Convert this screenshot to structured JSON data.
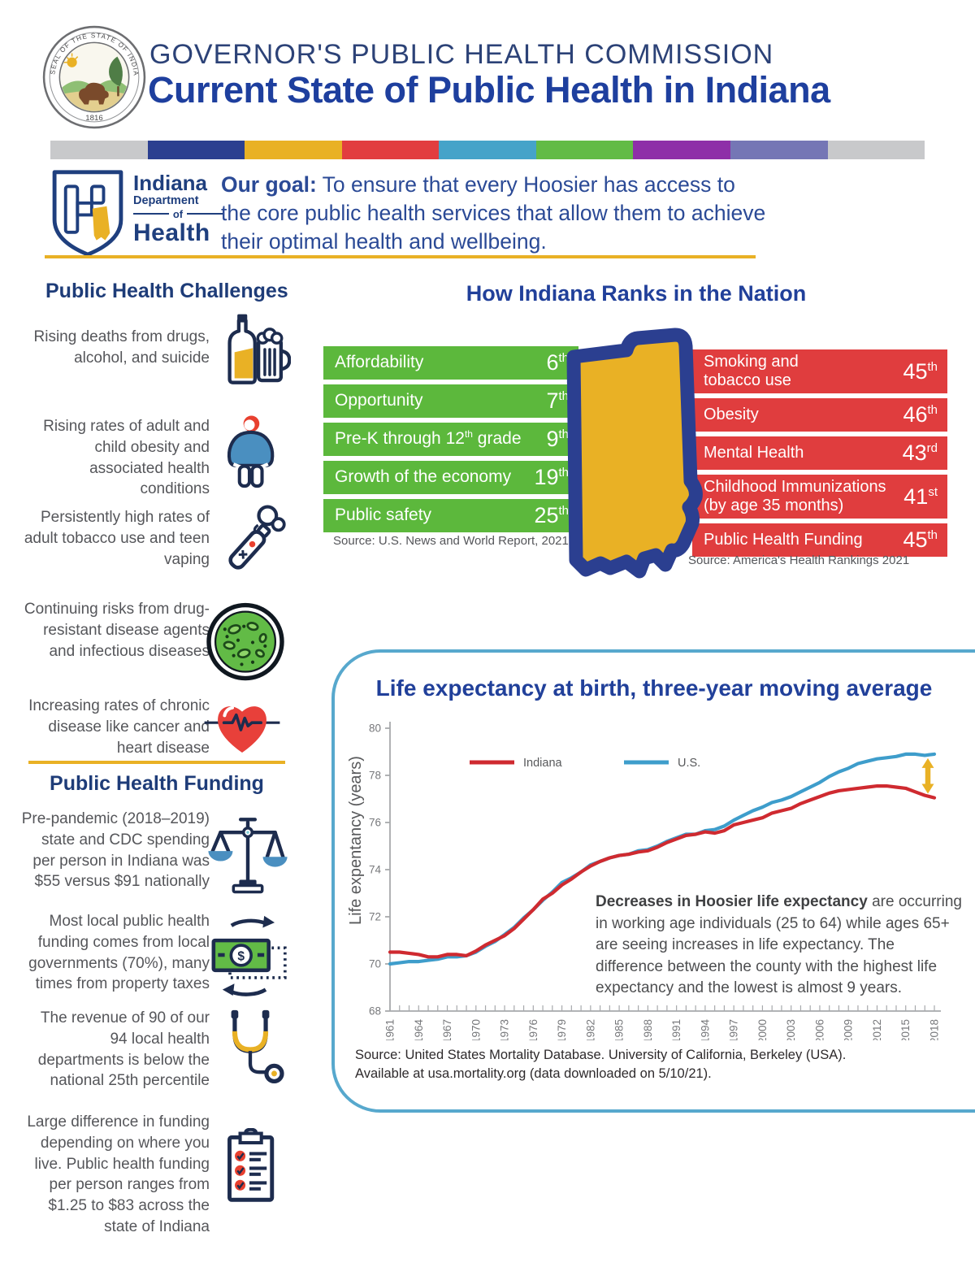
{
  "header": {
    "eyebrow": "GOVERNOR'S PUBLIC HEALTH COMMISSION",
    "title": "Current State of Public Health in Indiana",
    "seal_text": "SEAL OF THE STATE OF INDIANA",
    "seal_year": "1816"
  },
  "color_strip": [
    "#c8c9cb",
    "#2b3f90",
    "#e9b125",
    "#e23d3f",
    "#45a3c9",
    "#62bb46",
    "#8e2fa8",
    "#7576b5",
    "#c8c9cb"
  ],
  "idoh": {
    "l1": "Indiana",
    "l2": "Department",
    "l3": "of",
    "l4": "Health"
  },
  "icons": {
    "dollar_glyph": "$"
  },
  "goal": {
    "lead": "Our goal:",
    "text": " To ensure that every Hoosier has access to the core public health services that allow them to achieve their optimal health and wellbeing."
  },
  "challenges": {
    "heading": "Public Health Challenges",
    "items": [
      {
        "text": "Rising deaths from drugs, alcohol, and suicide",
        "icon": "alcohol-bottle-mug-icon"
      },
      {
        "text": "Rising rates of adult and child obesity and associated health conditions",
        "icon": "obesity-person-icon"
      },
      {
        "text": "Persistently high rates of adult tobacco use and teen vaping",
        "icon": "vape-icon"
      },
      {
        "text": "Continuing risks from drug-resistant disease agents and infectious diseases",
        "icon": "petri-dish-icon"
      },
      {
        "text": "Increasing rates of chronic disease like cancer and heart disease",
        "icon": "heart-pulse-icon"
      }
    ]
  },
  "funding": {
    "heading": "Public Health Funding",
    "items": [
      {
        "text": "Pre-pandemic (2018–2019) state and CDC spending per person in Indiana was $55 versus $91 nationally",
        "icon": "balance-scale-icon"
      },
      {
        "text": "Most local public health funding comes from local governments (70%), many times from property taxes",
        "icon": "money-cycle-icon"
      },
      {
        "text": "The revenue of 90 of our 94 local health departments is below the national 25th percentile",
        "icon": "stethoscope-icon"
      },
      {
        "text": "Large difference in funding depending on where you live. Public health funding per person ranges from $1.25 to $83 across the state of Indiana",
        "icon": "clipboard-checklist-icon"
      }
    ]
  },
  "rankings": {
    "heading": "How Indiana Ranks in the Nation",
    "good": [
      {
        "label": "Affordability",
        "rank": "6",
        "ord": "th"
      },
      {
        "label": "Opportunity",
        "rank": "7",
        "ord": "th"
      },
      {
        "label": [
          "Pre-K through 12",
          {
            "sup": "th"
          },
          " grade"
        ],
        "rank": "9",
        "ord": "th"
      },
      {
        "label": "Growth of the economy",
        "rank": "19",
        "ord": "th"
      },
      {
        "label": "Public safety",
        "rank": "25",
        "ord": "th"
      }
    ],
    "good_source": "Source: U.S. News and World Report, 2021",
    "bad": [
      {
        "label": "Smoking and\ntobacco use",
        "rank": "45",
        "ord": "th"
      },
      {
        "label": "Obesity",
        "rank": "46",
        "ord": "th"
      },
      {
        "label": "Mental Health",
        "rank": "43",
        "ord": "rd"
      },
      {
        "label": "Childhood Immunizations\n(by age 35 months)",
        "rank": "41",
        "ord": "st"
      },
      {
        "label": "Public Health Funding",
        "rank": "45",
        "ord": "th"
      }
    ],
    "bad_source": "Source: America's Health Rankings 2021"
  },
  "chart": {
    "title": "Life expectancy at birth, three-year moving average",
    "annotation_bold": "Decreases in Hoosier life expectancy",
    "annotation_rest": " are occurring in working age individuals (25 to 64) while ages 65+ are seeing increases in life expectancy. The difference between the county with the highest life expectancy and the lowest is almost 9 years.",
    "source_line1": "Source: United States Mortality Database. University of California, Berkeley (USA).",
    "source_line2": "Available at usa.mortality.org (data downloaded on 5/10/21)."
  },
  "chart_data": {
    "type": "line",
    "title": "Life expectancy at birth, three-year moving average",
    "ylabel": "Life expentancy (years)",
    "xlabel": "",
    "ylim": [
      68,
      80
    ],
    "xlim": [
      1961,
      2018
    ],
    "yticks": [
      68,
      70,
      72,
      74,
      76,
      78,
      80
    ],
    "xticks": [
      1961,
      1964,
      1967,
      1970,
      1973,
      1976,
      1979,
      1982,
      1985,
      1988,
      1991,
      1994,
      1997,
      2000,
      2003,
      2006,
      2009,
      2012,
      2015,
      2018
    ],
    "grid": false,
    "legend_position": "top-left-inside",
    "series": [
      {
        "name": "Indiana",
        "color": "#cf2a30",
        "points": [
          [
            1961,
            70.5
          ],
          [
            1962,
            70.5
          ],
          [
            1963,
            70.45
          ],
          [
            1964,
            70.4
          ],
          [
            1965,
            70.3
          ],
          [
            1966,
            70.3
          ],
          [
            1967,
            70.4
          ],
          [
            1968,
            70.4
          ],
          [
            1969,
            70.35
          ],
          [
            1970,
            70.55
          ],
          [
            1971,
            70.8
          ],
          [
            1972,
            71.0
          ],
          [
            1973,
            71.2
          ],
          [
            1974,
            71.5
          ],
          [
            1975,
            71.9
          ],
          [
            1976,
            72.3
          ],
          [
            1977,
            72.75
          ],
          [
            1978,
            73.0
          ],
          [
            1979,
            73.35
          ],
          [
            1980,
            73.6
          ],
          [
            1981,
            73.9
          ],
          [
            1982,
            74.15
          ],
          [
            1983,
            74.35
          ],
          [
            1984,
            74.5
          ],
          [
            1985,
            74.6
          ],
          [
            1986,
            74.65
          ],
          [
            1987,
            74.75
          ],
          [
            1988,
            74.8
          ],
          [
            1989,
            74.95
          ],
          [
            1990,
            75.15
          ],
          [
            1991,
            75.3
          ],
          [
            1992,
            75.45
          ],
          [
            1993,
            75.5
          ],
          [
            1994,
            75.6
          ],
          [
            1995,
            75.55
          ],
          [
            1996,
            75.65
          ],
          [
            1997,
            75.9
          ],
          [
            1998,
            76.0
          ],
          [
            1999,
            76.1
          ],
          [
            2000,
            76.2
          ],
          [
            2001,
            76.4
          ],
          [
            2002,
            76.5
          ],
          [
            2003,
            76.6
          ],
          [
            2004,
            76.8
          ],
          [
            2005,
            76.95
          ],
          [
            2006,
            77.1
          ],
          [
            2007,
            77.25
          ],
          [
            2008,
            77.35
          ],
          [
            2009,
            77.4
          ],
          [
            2010,
            77.45
          ],
          [
            2011,
            77.5
          ],
          [
            2012,
            77.55
          ],
          [
            2013,
            77.55
          ],
          [
            2014,
            77.5
          ],
          [
            2015,
            77.45
          ],
          [
            2016,
            77.3
          ],
          [
            2017,
            77.15
          ],
          [
            2018,
            77.05
          ]
        ]
      },
      {
        "name": "U.S.",
        "color": "#3e9dcb",
        "points": [
          [
            1961,
            70.0
          ],
          [
            1962,
            70.05
          ],
          [
            1963,
            70.1
          ],
          [
            1964,
            70.1
          ],
          [
            1965,
            70.15
          ],
          [
            1966,
            70.2
          ],
          [
            1967,
            70.3
          ],
          [
            1968,
            70.3
          ],
          [
            1969,
            70.35
          ],
          [
            1970,
            70.5
          ],
          [
            1971,
            70.75
          ],
          [
            1972,
            70.95
          ],
          [
            1973,
            71.25
          ],
          [
            1974,
            71.55
          ],
          [
            1975,
            71.95
          ],
          [
            1976,
            72.3
          ],
          [
            1977,
            72.7
          ],
          [
            1978,
            73.05
          ],
          [
            1979,
            73.45
          ],
          [
            1980,
            73.65
          ],
          [
            1981,
            73.9
          ],
          [
            1982,
            74.2
          ],
          [
            1983,
            74.35
          ],
          [
            1984,
            74.5
          ],
          [
            1985,
            74.6
          ],
          [
            1986,
            74.65
          ],
          [
            1987,
            74.8
          ],
          [
            1988,
            74.85
          ],
          [
            1989,
            75.0
          ],
          [
            1990,
            75.2
          ],
          [
            1991,
            75.35
          ],
          [
            1992,
            75.5
          ],
          [
            1993,
            75.5
          ],
          [
            1994,
            75.65
          ],
          [
            1995,
            75.7
          ],
          [
            1996,
            75.85
          ],
          [
            1997,
            76.1
          ],
          [
            1998,
            76.3
          ],
          [
            1999,
            76.5
          ],
          [
            2000,
            76.65
          ],
          [
            2001,
            76.85
          ],
          [
            2002,
            76.95
          ],
          [
            2003,
            77.1
          ],
          [
            2004,
            77.3
          ],
          [
            2005,
            77.5
          ],
          [
            2006,
            77.7
          ],
          [
            2007,
            77.95
          ],
          [
            2008,
            78.15
          ],
          [
            2009,
            78.3
          ],
          [
            2010,
            78.5
          ],
          [
            2011,
            78.6
          ],
          [
            2012,
            78.7
          ],
          [
            2013,
            78.75
          ],
          [
            2014,
            78.8
          ],
          [
            2015,
            78.9
          ],
          [
            2016,
            78.9
          ],
          [
            2017,
            78.85
          ],
          [
            2018,
            78.9
          ]
        ]
      }
    ]
  },
  "colors": {
    "navy_title": "#1e3f9e",
    "navy_heading": "#1e3c78",
    "body_gray": "#55565a",
    "green_bar": "#5cb83c",
    "red_bar": "#e03d3e",
    "gold": "#e9b125",
    "state_border_blue": "#2b3f90",
    "panel_border_blue": "#57a8cd",
    "indiana_line": "#cf2a30",
    "us_line": "#3e9dcb"
  }
}
